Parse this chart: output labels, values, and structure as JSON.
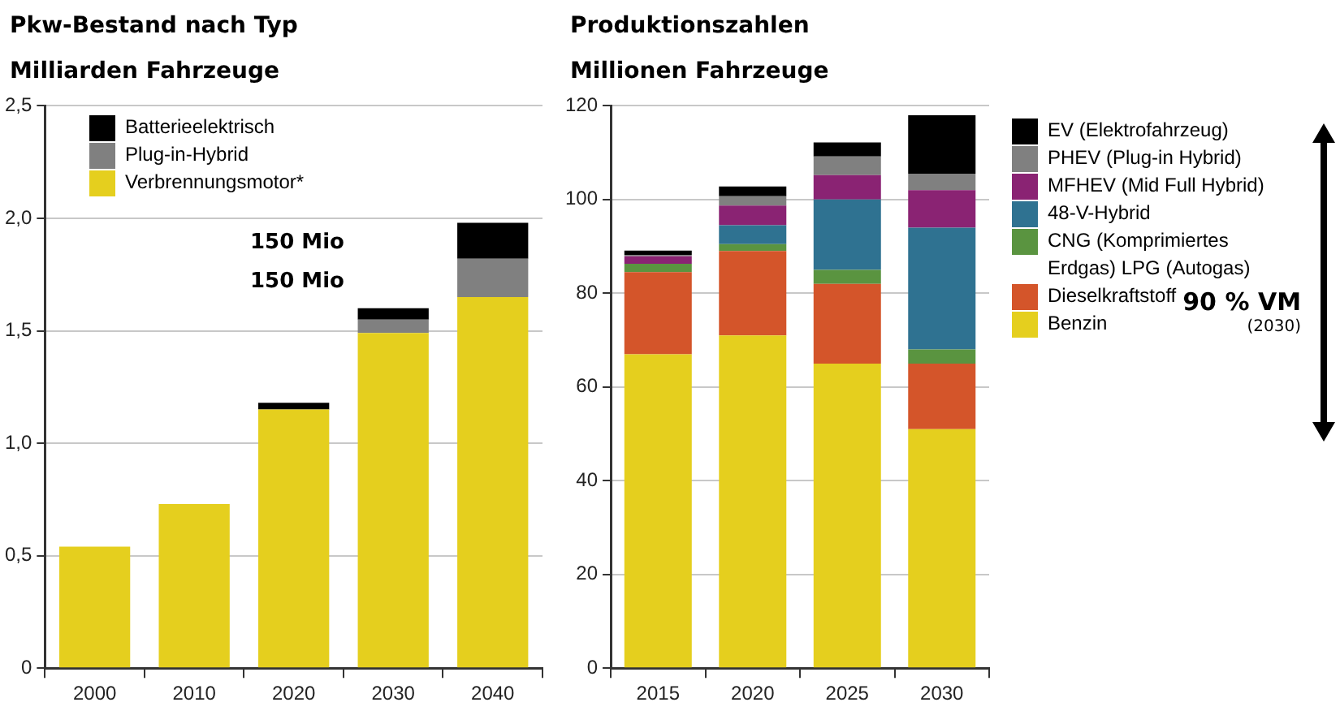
{
  "chart_data": [
    {
      "type": "bar",
      "title": "Pkw-Bestand nach Typ",
      "subtitle": "Milliarden Fahrzeuge",
      "stacked": true,
      "grid": "y",
      "legend": "top left",
      "categories": [
        "2000",
        "2010",
        "2020",
        "2030",
        "2040"
      ],
      "series": [
        {
          "name": "Verbrennungsmotor*",
          "color": "#e5cf1e",
          "values": [
            0.54,
            0.73,
            1.15,
            1.49,
            1.65
          ]
        },
        {
          "name": "Plug-in-Hybrid",
          "color": "#808080",
          "values": [
            0,
            0,
            0,
            0.06,
            0.17
          ]
        },
        {
          "name": "Batterieelektrisch",
          "color": "#000000",
          "values": [
            0,
            0,
            0.03,
            0.05,
            0.16
          ]
        }
      ],
      "ylim": [
        0,
        2.5
      ],
      "yticks": [
        0,
        {
          "value": 0.5,
          "label": "0,5"
        },
        {
          "value": 1,
          "label": "1,0"
        },
        {
          "value": 1.5,
          "label": "1,5"
        },
        {
          "value": 2,
          "label": "2,0"
        },
        {
          "value": 2.5,
          "label": "2,5"
        }
      ],
      "annotations": [
        "150 Mio",
        "150 Mio"
      ]
    },
    {
      "type": "bar",
      "title": "Produktionszahlen",
      "subtitle": "Millionen Fahrzeuge",
      "stacked": true,
      "grid": "y",
      "legend": "right",
      "categories": [
        "2015",
        "2020",
        "2025",
        "2030"
      ],
      "series": [
        {
          "name": "Benzin",
          "color": "#e5cf1e",
          "values": [
            67,
            71,
            65,
            51
          ]
        },
        {
          "name": "Dieselkraftstoff",
          "color": "#d4552a",
          "values": [
            17.5,
            18,
            17,
            14
          ]
        },
        {
          "name": "CNG (Komprimiertes Erdgas) LPG (Autogas)",
          "color": "#5a9440",
          "values": [
            1.8,
            1.5,
            3,
            3
          ]
        },
        {
          "name": "48-V-Hybrid",
          "color": "#2f7291",
          "values": [
            0,
            4,
            15,
            26
          ]
        },
        {
          "name": "MFHEV (Mid Full Hybrid)",
          "color": "#8a2373",
          "values": [
            1.6,
            4.2,
            5.2,
            8
          ]
        },
        {
          "name": "PHEV (Plug-in Hybrid)",
          "color": "#808080",
          "values": [
            0.3,
            2,
            4,
            3.5
          ]
        },
        {
          "name": "EV (Elektrofahrzeug)",
          "color": "#000000",
          "values": [
            0.9,
            2.1,
            3,
            12.5
          ]
        }
      ],
      "ylim": [
        0,
        120
      ],
      "yticks": [
        0,
        20,
        40,
        60,
        80,
        100,
        120
      ],
      "annotations": [
        "90 % VM",
        "(2030)"
      ]
    }
  ]
}
